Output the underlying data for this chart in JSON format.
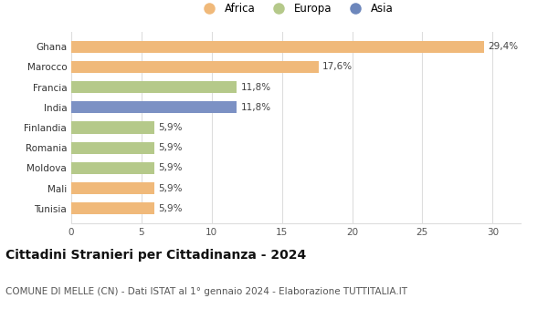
{
  "categories": [
    "Tunisia",
    "Mali",
    "Moldova",
    "Romania",
    "Finlandia",
    "India",
    "Francia",
    "Marocco",
    "Ghana"
  ],
  "values": [
    5.9,
    5.9,
    5.9,
    5.9,
    5.9,
    11.8,
    11.8,
    17.6,
    29.4
  ],
  "labels": [
    "5,9%",
    "5,9%",
    "5,9%",
    "5,9%",
    "5,9%",
    "11,8%",
    "11,8%",
    "17,6%",
    "29,4%"
  ],
  "colors": [
    "#f0b97a",
    "#f0b97a",
    "#b5c98a",
    "#b5c98a",
    "#b5c98a",
    "#7c91c4",
    "#b5c98a",
    "#f0b97a",
    "#f0b97a"
  ],
  "legend": [
    {
      "label": "Africa",
      "color": "#f0b97a"
    },
    {
      "label": "Europa",
      "color": "#b5c98a"
    },
    {
      "label": "Asia",
      "color": "#6d87bc"
    }
  ],
  "xlim": [
    0,
    32
  ],
  "xticks": [
    0,
    5,
    10,
    15,
    20,
    25,
    30
  ],
  "title": "Cittadini Stranieri per Cittadinanza - 2024",
  "subtitle": "COMUNE DI MELLE (CN) - Dati ISTAT al 1° gennaio 2024 - Elaborazione TUTTITALIA.IT",
  "title_fontsize": 10,
  "subtitle_fontsize": 7.5,
  "label_fontsize": 7.5,
  "tick_fontsize": 7.5,
  "legend_fontsize": 8.5,
  "background_color": "#ffffff",
  "grid_color": "#dddddd",
  "bar_height": 0.6
}
